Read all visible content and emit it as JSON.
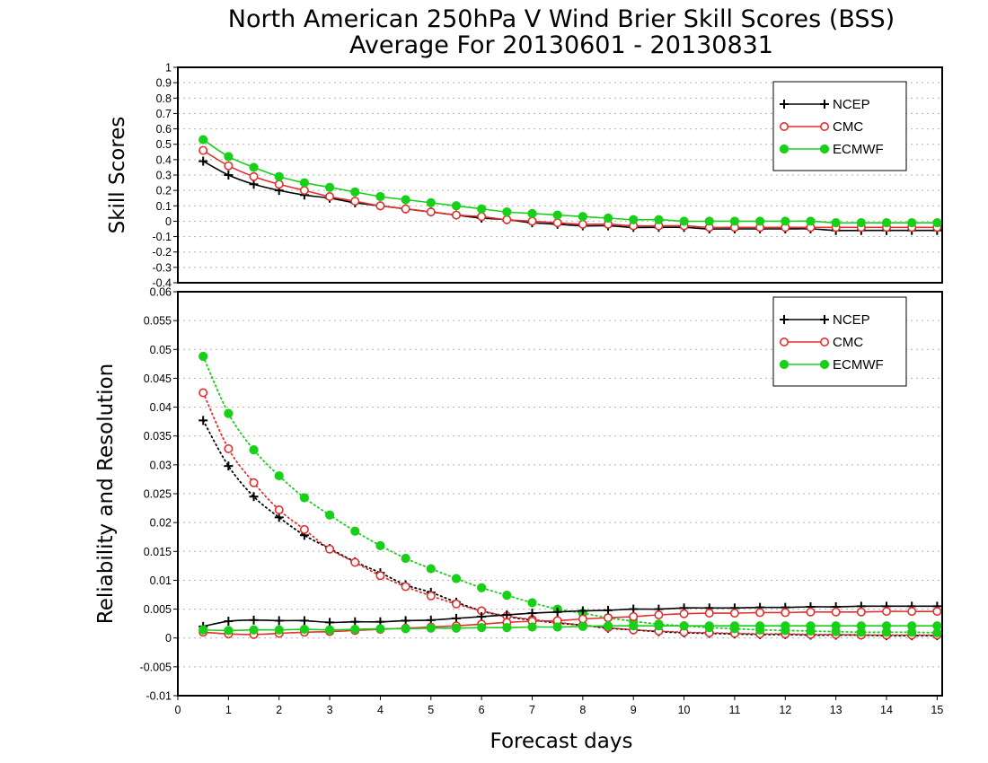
{
  "title_line1": "North American 250hPa V Wind Brier Skill Scores (BSS)",
  "title_line2": "Average For 20130601 - 20130831",
  "xlabel": "Forecast days",
  "colors": {
    "NCEP": "#000000",
    "CMC": "#e03030",
    "ECMWF": "#18d018",
    "grid": "#b0b0b0"
  },
  "chart_data": [
    {
      "type": "line",
      "ylabel": "Skill Scores",
      "xlim": [
        0,
        15.1
      ],
      "ylim": [
        -0.4,
        1
      ],
      "yticks": [
        -0.4,
        -0.3,
        -0.2,
        -0.1,
        0,
        0.1,
        0.2,
        0.3,
        0.4,
        0.5,
        0.6,
        0.7,
        0.8,
        0.9,
        1
      ],
      "ytick_labels": [
        "-0.4",
        "-0.3",
        "-0.2",
        "-0.1",
        "0",
        "0.1",
        "0.2",
        "0.3",
        "0.4",
        "0.5",
        "0.6",
        "0.7",
        "0.8",
        "0.9",
        "1"
      ],
      "legend_position": "top-right",
      "grid": true,
      "x": [
        0.5,
        1,
        1.5,
        2,
        2.5,
        3,
        3.5,
        4,
        4.5,
        5,
        5.5,
        6,
        6.5,
        7,
        7.5,
        8,
        8.5,
        9,
        9.5,
        10,
        10.5,
        11,
        11.5,
        12,
        12.5,
        13,
        13.5,
        14,
        14.5,
        15
      ],
      "series": [
        {
          "name": "NCEP",
          "marker": "plus",
          "values": [
            0.39,
            0.3,
            0.24,
            0.2,
            0.17,
            0.15,
            0.12,
            0.1,
            0.08,
            0.06,
            0.04,
            0.02,
            0.01,
            -0.01,
            -0.02,
            -0.03,
            -0.03,
            -0.04,
            -0.04,
            -0.04,
            -0.05,
            -0.05,
            -0.05,
            -0.05,
            -0.05,
            -0.06,
            -0.06,
            -0.06,
            -0.06,
            -0.06
          ]
        },
        {
          "name": "CMC",
          "marker": "circle-open",
          "values": [
            0.46,
            0.36,
            0.29,
            0.24,
            0.2,
            0.16,
            0.13,
            0.1,
            0.08,
            0.06,
            0.04,
            0.03,
            0.01,
            0.0,
            -0.01,
            -0.02,
            -0.02,
            -0.03,
            -0.03,
            -0.03,
            -0.04,
            -0.04,
            -0.04,
            -0.04,
            -0.04,
            -0.04,
            -0.04,
            -0.04,
            -0.04,
            -0.04
          ]
        },
        {
          "name": "ECMWF",
          "marker": "circle-filled",
          "values": [
            0.53,
            0.42,
            0.35,
            0.29,
            0.25,
            0.22,
            0.19,
            0.16,
            0.14,
            0.12,
            0.1,
            0.08,
            0.06,
            0.05,
            0.04,
            0.03,
            0.02,
            0.01,
            0.01,
            0.0,
            0.0,
            0.0,
            0.0,
            0.0,
            0.0,
            -0.01,
            -0.01,
            -0.01,
            -0.01,
            -0.01
          ]
        }
      ]
    },
    {
      "type": "line",
      "ylabel": "Reliability and Resolution",
      "xlabel": "Forecast days",
      "xlim": [
        0,
        15.1
      ],
      "ylim": [
        -0.01,
        0.06
      ],
      "xticks": [
        0,
        1,
        2,
        3,
        4,
        5,
        6,
        7,
        8,
        9,
        10,
        11,
        12,
        13,
        14,
        15
      ],
      "yticks": [
        -0.01,
        -0.005,
        0,
        0.005,
        0.01,
        0.015,
        0.02,
        0.025,
        0.03,
        0.035,
        0.04,
        0.045,
        0.05,
        0.055,
        0.06
      ],
      "ytick_labels": [
        "-0.01",
        "-0.005",
        "0",
        "0.005",
        "0.01",
        "0.015",
        "0.02",
        "0.025",
        "0.03",
        "0.035",
        "0.04",
        "0.045",
        "0.05",
        "0.055",
        "0.06"
      ],
      "legend_position": "top-right",
      "grid": true,
      "x": [
        0.5,
        1,
        1.5,
        2,
        2.5,
        3,
        3.5,
        4,
        4.5,
        5,
        5.5,
        6,
        6.5,
        7,
        7.5,
        8,
        8.5,
        9,
        9.5,
        10,
        10.5,
        11,
        11.5,
        12,
        12.5,
        13,
        13.5,
        14,
        14.5,
        15
      ],
      "series": [
        {
          "name": "NCEP",
          "kind": "resolution",
          "linestyle": "dotted",
          "marker": "plus",
          "values": [
            0.0377,
            0.0298,
            0.0245,
            0.0209,
            0.0178,
            0.0155,
            0.0132,
            0.0113,
            0.0092,
            0.0079,
            0.0062,
            0.0047,
            0.0037,
            0.0031,
            0.0026,
            0.0022,
            0.0017,
            0.0014,
            0.0011,
            0.0009,
            0.0008,
            0.0007,
            0.0006,
            0.0006,
            0.0005,
            0.0005,
            0.0005,
            0.0004,
            0.0004,
            0.0004
          ]
        },
        {
          "name": "CMC",
          "kind": "resolution",
          "linestyle": "dotted",
          "marker": "circle-open",
          "values": [
            0.0425,
            0.0328,
            0.0269,
            0.0222,
            0.0188,
            0.0154,
            0.0131,
            0.0108,
            0.0089,
            0.0073,
            0.0059,
            0.0047,
            0.0038,
            0.0032,
            0.0027,
            0.0022,
            0.0018,
            0.0014,
            0.0012,
            0.001,
            0.0009,
            0.0008,
            0.0007,
            0.0007,
            0.0006,
            0.0006,
            0.0005,
            0.0005,
            0.0005,
            0.0005
          ]
        },
        {
          "name": "ECMWF",
          "kind": "resolution",
          "linestyle": "dotted",
          "marker": "circle-filled",
          "values": [
            0.0488,
            0.0389,
            0.0326,
            0.0281,
            0.0243,
            0.0213,
            0.0185,
            0.016,
            0.0138,
            0.012,
            0.0103,
            0.0087,
            0.0074,
            0.0061,
            0.005,
            0.0043,
            0.0035,
            0.0029,
            0.0024,
            0.0021,
            0.0018,
            0.0016,
            0.0014,
            0.0013,
            0.0012,
            0.0011,
            0.001,
            0.001,
            0.001,
            0.0009
          ]
        },
        {
          "name": "NCEP",
          "kind": "reliability",
          "linestyle": "solid",
          "marker": "plus",
          "values": [
            0.002,
            0.0029,
            0.0031,
            0.003,
            0.003,
            0.0027,
            0.0028,
            0.0028,
            0.003,
            0.0031,
            0.0034,
            0.0037,
            0.004,
            0.0043,
            0.0045,
            0.0047,
            0.0048,
            0.005,
            0.005,
            0.0052,
            0.0052,
            0.0052,
            0.0053,
            0.0053,
            0.0054,
            0.0054,
            0.0055,
            0.0055,
            0.0055,
            0.0055
          ]
        },
        {
          "name": "CMC",
          "kind": "reliability",
          "linestyle": "solid",
          "marker": "circle-open",
          "values": [
            0.001,
            0.0007,
            0.0006,
            0.0008,
            0.001,
            0.0011,
            0.0013,
            0.0015,
            0.0017,
            0.0019,
            0.0021,
            0.0024,
            0.0027,
            0.0029,
            0.003,
            0.0033,
            0.0035,
            0.0037,
            0.004,
            0.0042,
            0.0043,
            0.0043,
            0.0044,
            0.0044,
            0.0045,
            0.0045,
            0.0045,
            0.0046,
            0.0046,
            0.0046
          ]
        },
        {
          "name": "ECMWF",
          "kind": "reliability",
          "linestyle": "solid",
          "marker": "circle-filled",
          "values": [
            0.0014,
            0.0013,
            0.0014,
            0.0014,
            0.0015,
            0.0014,
            0.0015,
            0.0016,
            0.0016,
            0.0017,
            0.0017,
            0.0018,
            0.0018,
            0.0019,
            0.0019,
            0.002,
            0.0021,
            0.0021,
            0.0021,
            0.0021,
            0.0021,
            0.0021,
            0.0021,
            0.0021,
            0.0021,
            0.0021,
            0.0021,
            0.0021,
            0.0021,
            0.0021
          ]
        }
      ]
    }
  ]
}
